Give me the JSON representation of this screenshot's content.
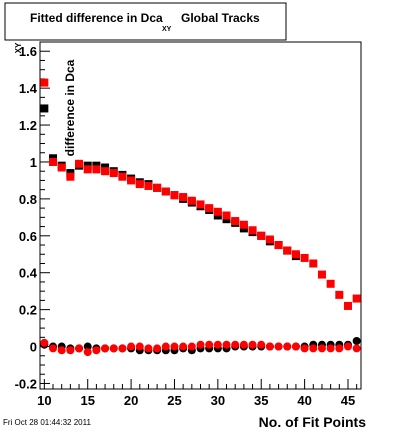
{
  "chart_data": {
    "type": "scatter",
    "title": "Fitted difference in Dca",
    "title_subscript": "XY",
    "title_suffix": "Global Tracks",
    "xlabel": "No. of Fit Points",
    "ylabel": "difference in Dca",
    "ylabel_subscript": "XY",
    "xlim": [
      9.5,
      46.5
    ],
    "ylim": [
      -0.23,
      1.65
    ],
    "x_ticks": [
      10,
      15,
      20,
      25,
      30,
      35,
      40,
      45
    ],
    "y_ticks": [
      -0.2,
      0,
      0.2,
      0.4,
      0.6,
      0.8,
      1,
      1.2,
      1.4,
      1.6
    ],
    "y_tick_labels": [
      "-0.2",
      "0",
      "0.2",
      "0.4",
      "0.6",
      "0.8",
      "1",
      "1.2",
      "1.4",
      "1.6"
    ],
    "grid": false,
    "series": [
      {
        "color": "#000000",
        "marker": "square",
        "x": [
          10,
          11,
          12,
          13,
          14,
          15,
          16,
          17,
          18,
          19,
          20,
          21,
          22,
          23,
          24,
          25,
          26,
          27,
          28,
          29,
          30,
          31,
          32,
          33,
          34,
          35,
          36,
          37,
          38,
          39
        ],
        "y": [
          1.29,
          1.02,
          0.98,
          0.94,
          0.98,
          0.98,
          0.98,
          0.97,
          0.95,
          0.93,
          0.91,
          0.89,
          0.88,
          0.86,
          0.84,
          0.82,
          0.8,
          0.78,
          0.76,
          0.74,
          0.71,
          0.69,
          0.67,
          0.64,
          0.62,
          0.6,
          0.57,
          0.55,
          0.52,
          0.49
        ]
      },
      {
        "color": "#ff0000",
        "marker": "square",
        "x": [
          10,
          11,
          12,
          13,
          14,
          15,
          16,
          17,
          18,
          19,
          20,
          21,
          22,
          23,
          24,
          25,
          26,
          27,
          28,
          29,
          30,
          31,
          32,
          33,
          34,
          35,
          36,
          37,
          38,
          39,
          40,
          41,
          42,
          43,
          44,
          45,
          46
        ],
        "y": [
          1.43,
          1.0,
          0.97,
          0.92,
          0.99,
          0.96,
          0.96,
          0.95,
          0.94,
          0.92,
          0.9,
          0.88,
          0.87,
          0.86,
          0.84,
          0.82,
          0.81,
          0.79,
          0.77,
          0.75,
          0.73,
          0.71,
          0.68,
          0.66,
          0.63,
          0.6,
          0.58,
          0.55,
          0.52,
          0.5,
          0.48,
          0.45,
          0.39,
          0.34,
          0.28,
          0.22,
          0.26
        ]
      },
      {
        "color": "#000000",
        "marker": "circle",
        "x": [
          10,
          11,
          12,
          13,
          14,
          15,
          16,
          17,
          18,
          19,
          20,
          21,
          22,
          23,
          24,
          25,
          26,
          27,
          28,
          29,
          30,
          31,
          32,
          33,
          34,
          35,
          36,
          37,
          38,
          39,
          40,
          41,
          42,
          43,
          44,
          45,
          46
        ],
        "y": [
          0.01,
          0.0,
          0.0,
          -0.01,
          -0.01,
          0.0,
          -0.01,
          -0.01,
          -0.01,
          -0.01,
          -0.01,
          -0.02,
          -0.02,
          -0.02,
          -0.02,
          -0.02,
          -0.01,
          -0.02,
          -0.01,
          -0.01,
          -0.01,
          -0.01,
          0.0,
          0.0,
          0.0,
          0.0,
          0.0,
          0.0,
          0.0,
          0.0,
          0.0,
          0.01,
          0.01,
          0.01,
          0.01,
          0.01,
          0.03
        ]
      },
      {
        "color": "#ff0000",
        "marker": "circle",
        "x": [
          10,
          11,
          12,
          13,
          14,
          15,
          16,
          17,
          18,
          19,
          20,
          21,
          22,
          23,
          24,
          25,
          26,
          27,
          28,
          29,
          30,
          31,
          32,
          33,
          34,
          35,
          36,
          37,
          38,
          39,
          40,
          41,
          42,
          43,
          44,
          45,
          46
        ],
        "y": [
          0.02,
          -0.01,
          -0.02,
          -0.02,
          -0.01,
          -0.03,
          -0.02,
          -0.01,
          -0.01,
          -0.01,
          0.0,
          0.0,
          -0.01,
          -0.01,
          0.0,
          0.0,
          0.0,
          0.0,
          0.01,
          0.01,
          0.01,
          0.01,
          0.01,
          0.01,
          0.01,
          0.01,
          0.0,
          0.0,
          0.0,
          0.0,
          -0.01,
          -0.01,
          -0.01,
          -0.01,
          -0.01,
          0.0,
          -0.01
        ]
      }
    ]
  },
  "footer": "Fri Oct 28 01:44:32 2011"
}
